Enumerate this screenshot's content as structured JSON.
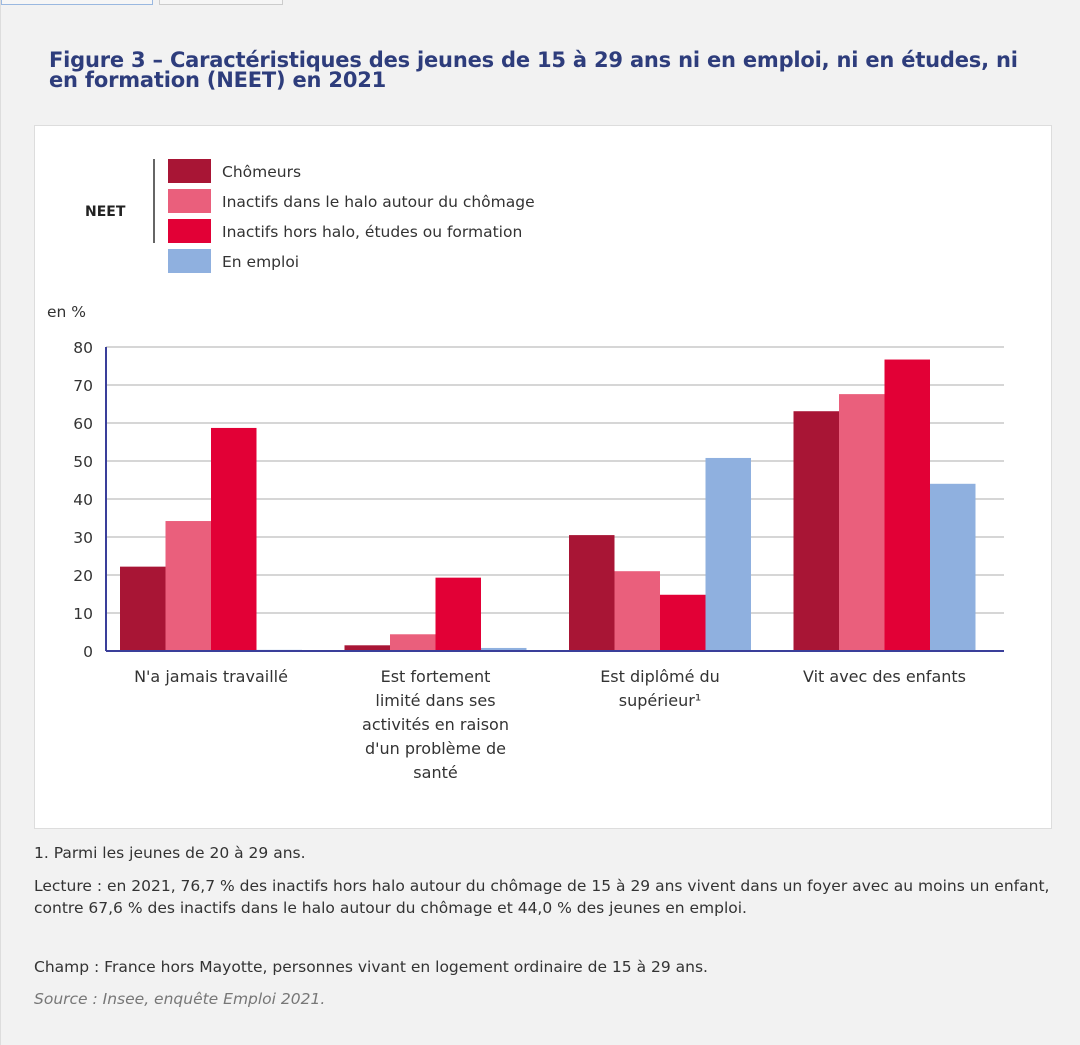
{
  "title": "Figure 3 – Caractéristiques des jeunes de 15 à 29 ans ni en emploi, ni en études, ni en formation (NEET) en 2021",
  "legend_group_label": "NEET",
  "chart_data": {
    "type": "bar",
    "ylabel": "en %",
    "ylim": [
      0,
      80
    ],
    "yticks": [
      0,
      10,
      20,
      30,
      40,
      50,
      60,
      70,
      80
    ],
    "grid": true,
    "legend_position": "top-left",
    "categories": [
      [
        "N'a jamais travaillé"
      ],
      [
        "Est fortement",
        "limité dans ses",
        "activités en raison",
        "d'un problème de",
        "santé"
      ],
      [
        "Est diplômé du",
        "supérieur¹"
      ],
      [
        "Vit avec des enfants"
      ]
    ],
    "series": [
      {
        "name": "Chômeurs",
        "color": "#a81535",
        "values": [
          22.2,
          1.5,
          30.5,
          63.1
        ]
      },
      {
        "name": "Inactifs dans le halo autour du chômage",
        "color": "#ea5f7c",
        "values": [
          34.2,
          4.4,
          21.0,
          67.6
        ]
      },
      {
        "name": "Inactifs hors halo, études ou formation",
        "color": "#e20036",
        "values": [
          58.7,
          19.3,
          14.8,
          76.7
        ]
      },
      {
        "name": "En emploi",
        "color": "#8fb0df",
        "values": [
          0.3,
          0.8,
          50.8,
          44.0
        ]
      }
    ]
  },
  "notes": {
    "footnote": "1. Parmi les jeunes de 20 à 29 ans.",
    "lecture": "Lecture : en 2021, 76,7 % des inactifs hors halo autour du chômage de 15 à 29 ans vivent dans un foyer avec au moins un enfant, contre 67,6 % des inactifs dans le halo autour du chômage et 44,0 % des jeunes en emploi.",
    "champ": "Champ : France hors Mayotte, personnes vivant en logement ordinaire de 15 à 29 ans.",
    "source": "Source : Insee, enquête Emploi 2021."
  }
}
